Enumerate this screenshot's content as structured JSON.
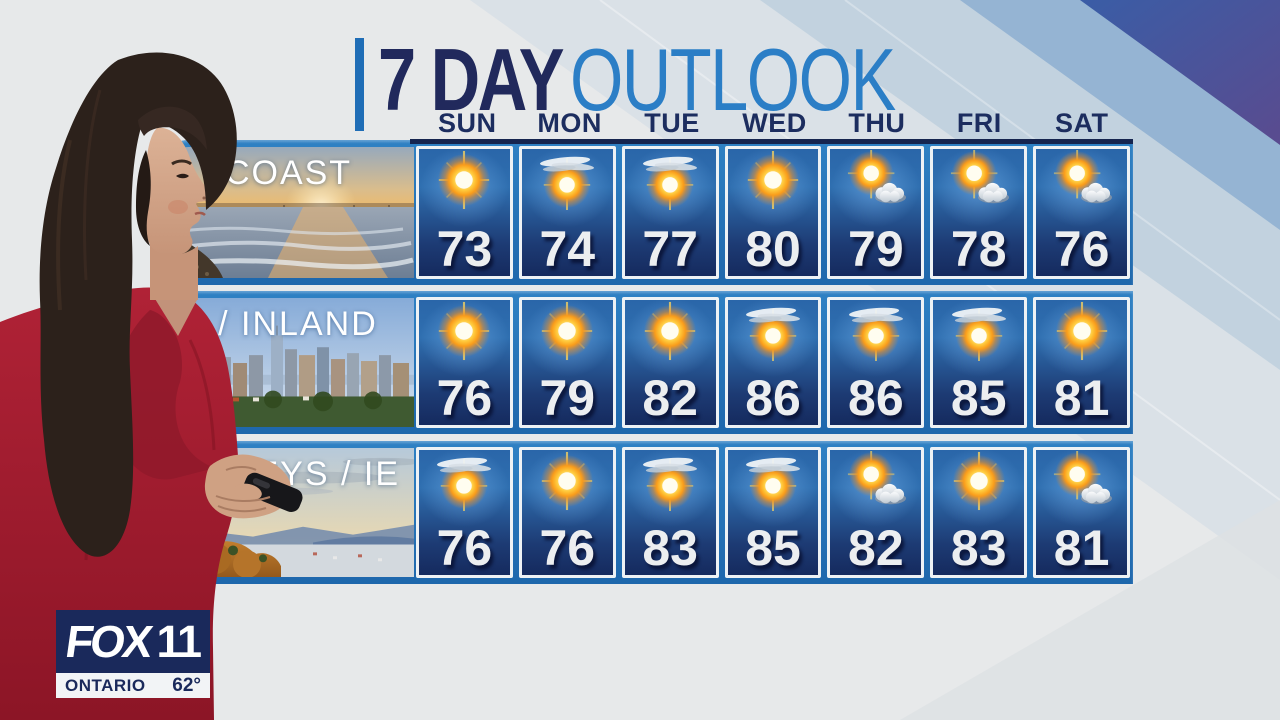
{
  "title": {
    "seven_day": "7 DAY",
    "outlook": "OUTLOOK"
  },
  "days": [
    "SUN",
    "MON",
    "TUE",
    "WED",
    "THU",
    "FRI",
    "SAT"
  ],
  "regions": [
    {
      "label": "COAST",
      "photo": "coast-sunset-pier",
      "temps": [
        73,
        74,
        77,
        80,
        79,
        78,
        76
      ],
      "icons": [
        "sunny",
        "sun-wispy-clouds",
        "sun-wispy-clouds",
        "sunny",
        "partly-cloudy",
        "partly-cloudy",
        "partly-cloudy"
      ]
    },
    {
      "label": "LA / INLAND OC",
      "photo": "la-skyline",
      "temps": [
        76,
        79,
        82,
        86,
        86,
        85,
        81
      ],
      "icons": [
        "sunny",
        "sunny",
        "sunny",
        "sun-wispy-clouds",
        "sun-wispy-clouds",
        "sun-wispy-clouds",
        "sunny"
      ]
    },
    {
      "label": "EYS / IE",
      "photo": "valley-rocks",
      "temps": [
        76,
        76,
        83,
        85,
        82,
        83,
        81
      ],
      "icons": [
        "sun-wispy-clouds",
        "sunny",
        "sun-wispy-clouds",
        "sun-wispy-clouds",
        "partly-cloudy",
        "sunny",
        "partly-cloudy"
      ]
    }
  ],
  "station": {
    "fox": "FOX",
    "eleven": "11",
    "location": "ONTARIO",
    "current_temp": "62°"
  },
  "colors": {
    "panel_blue": "#2173b8",
    "navy": "#1c2d5f",
    "title_blue": "#2b7ec6",
    "tile_border": "#eef2f5",
    "temp_text": "#eceef0",
    "fox_navy": "#1a295b"
  },
  "chart_data": {
    "type": "table",
    "title": "7 DAY OUTLOOK",
    "columns": [
      "SUN",
      "MON",
      "TUE",
      "WED",
      "THU",
      "FRI",
      "SAT"
    ],
    "rows": [
      {
        "region": "COAST",
        "high_temps_f": [
          73,
          74,
          77,
          80,
          79,
          78,
          76
        ],
        "conditions": [
          "sunny",
          "mostly-sunny",
          "mostly-sunny",
          "sunny",
          "partly-cloudy",
          "partly-cloudy",
          "partly-cloudy"
        ]
      },
      {
        "region": "LA / INLAND OC",
        "high_temps_f": [
          76,
          79,
          82,
          86,
          86,
          85,
          81
        ],
        "conditions": [
          "sunny",
          "sunny",
          "sunny",
          "mostly-sunny",
          "mostly-sunny",
          "mostly-sunny",
          "sunny"
        ]
      },
      {
        "region": "EYS / IE",
        "high_temps_f": [
          76,
          76,
          83,
          85,
          82,
          83,
          81
        ],
        "conditions": [
          "mostly-sunny",
          "sunny",
          "mostly-sunny",
          "mostly-sunny",
          "partly-cloudy",
          "sunny",
          "partly-cloudy"
        ]
      }
    ],
    "station_current": {
      "location": "ONTARIO",
      "temp_f": 62
    }
  }
}
